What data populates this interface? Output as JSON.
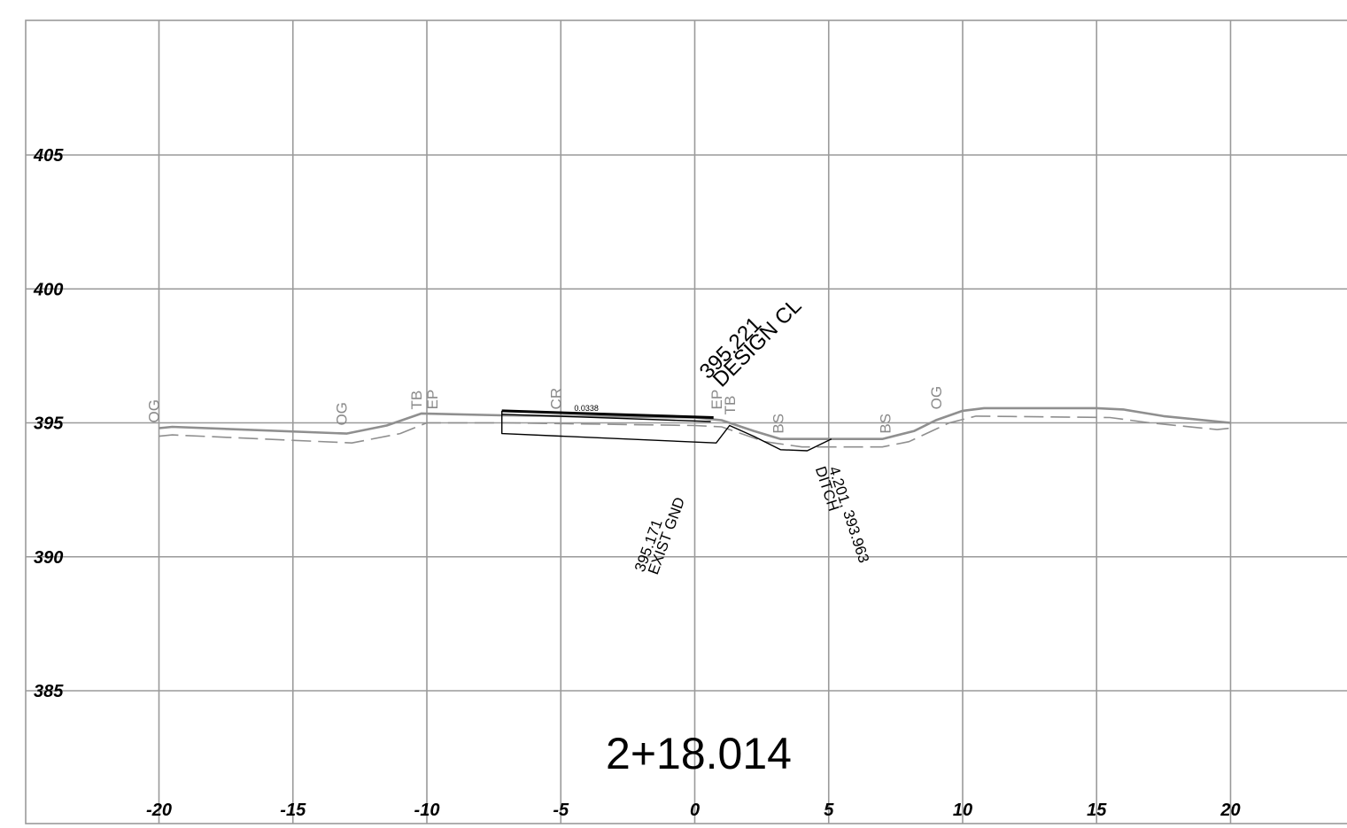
{
  "station": "2+18.014",
  "chart_data": {
    "type": "line",
    "title": "2+18.014",
    "xlabel": "",
    "ylabel": "",
    "xlim": [
      -25,
      20
    ],
    "ylim": [
      380,
      410
    ],
    "x_ticks": [
      "-20",
      "-15",
      "-10",
      "-5",
      "0",
      "5",
      "10",
      "15",
      "20"
    ],
    "y_ticks": [
      "405",
      "400",
      "395",
      "390",
      "385"
    ],
    "grid": true,
    "series": [
      {
        "style": "solid-gray",
        "x": [
          -20,
          -19.5,
          -13,
          -11.5,
          -10.2,
          -7.2,
          0,
          1,
          2.2,
          3.2,
          7,
          8.2,
          9,
          10,
          10.8,
          15,
          16,
          17.5,
          20
        ],
        "y": [
          394.8,
          394.85,
          394.6,
          394.9,
          395.35,
          395.28,
          395.2,
          395.1,
          394.7,
          394.4,
          394.4,
          394.7,
          395.1,
          395.45,
          395.55,
          395.55,
          395.5,
          395.25,
          395.0
        ]
      },
      {
        "style": "dashed-gray",
        "x": [
          -20,
          -19.5,
          -12.8,
          -11,
          -10,
          -7,
          0,
          1,
          2.6,
          4,
          7,
          8,
          9.5,
          10.5,
          15.5,
          17,
          19.5,
          20
        ],
        "y": [
          394.5,
          394.55,
          394.25,
          394.6,
          395.0,
          395.0,
          394.9,
          394.85,
          394.3,
          394.1,
          394.1,
          394.3,
          395.0,
          395.25,
          395.2,
          395.0,
          394.75,
          394.8
        ]
      },
      {
        "style": "design-top",
        "x": [
          -7.2,
          0.7
        ],
        "y": [
          395.45,
          395.2
        ]
      },
      {
        "style": "design-base",
        "x": [
          -7.2,
          0.6
        ],
        "y": [
          395.32,
          395.05
        ]
      },
      {
        "style": "design-section",
        "x": [
          -7.2,
          -7.2,
          0.8,
          1.3,
          2.2,
          3.2,
          4.2,
          5.1
        ],
        "y": [
          395.45,
          394.6,
          394.25,
          394.9,
          394.5,
          394.0,
          393.96,
          394.4
        ]
      }
    ],
    "annotations": [
      {
        "text": "OG",
        "x": -20,
        "y": 395.0,
        "color": "gray",
        "angle": -90
      },
      {
        "text": "OG",
        "x": -13,
        "y": 394.9,
        "color": "gray",
        "angle": -90
      },
      {
        "text": "TB",
        "x": -10.2,
        "y": 395.5,
        "color": "gray",
        "angle": -90
      },
      {
        "text": "EP",
        "x": -9.6,
        "y": 395.5,
        "color": "gray",
        "angle": -90
      },
      {
        "text": "CR",
        "x": -5,
        "y": 395.5,
        "color": "gray",
        "angle": -90
      },
      {
        "text": "0.0338",
        "x": -4.5,
        "y": 395.45,
        "color": "black",
        "angle": 0
      },
      {
        "text": "EP",
        "x": 1,
        "y": 395.5,
        "color": "gray",
        "angle": -90
      },
      {
        "text": "TB",
        "x": 1.5,
        "y": 395.3,
        "color": "gray",
        "angle": -90
      },
      {
        "text": "BS",
        "x": 3.3,
        "y": 394.6,
        "color": "gray",
        "angle": -90
      },
      {
        "text": "BS",
        "x": 7.3,
        "y": 394.6,
        "color": "gray",
        "angle": -90
      },
      {
        "text": "OG",
        "x": 9.2,
        "y": 395.5,
        "color": "gray",
        "angle": -90
      },
      {
        "text": "395.221",
        "x": 0.5,
        "y": 396.6,
        "color": "black",
        "angle": -45
      },
      {
        "text": "DESIGN CL",
        "x": 1.0,
        "y": 396.3,
        "color": "black",
        "angle": -45
      },
      {
        "text": "395.171",
        "x": -1.9,
        "y": 389.4,
        "color": "black",
        "angle": -70
      },
      {
        "text": "EXIST GND",
        "x": -1.4,
        "y": 389.3,
        "color": "black",
        "angle": -70
      },
      {
        "text": "4.201, 393.963",
        "x": 5.0,
        "y": 393.3,
        "color": "black",
        "angle": 72
      },
      {
        "text": "DITCH",
        "x": 4.5,
        "y": 393.3,
        "color": "black",
        "angle": 72
      }
    ]
  }
}
